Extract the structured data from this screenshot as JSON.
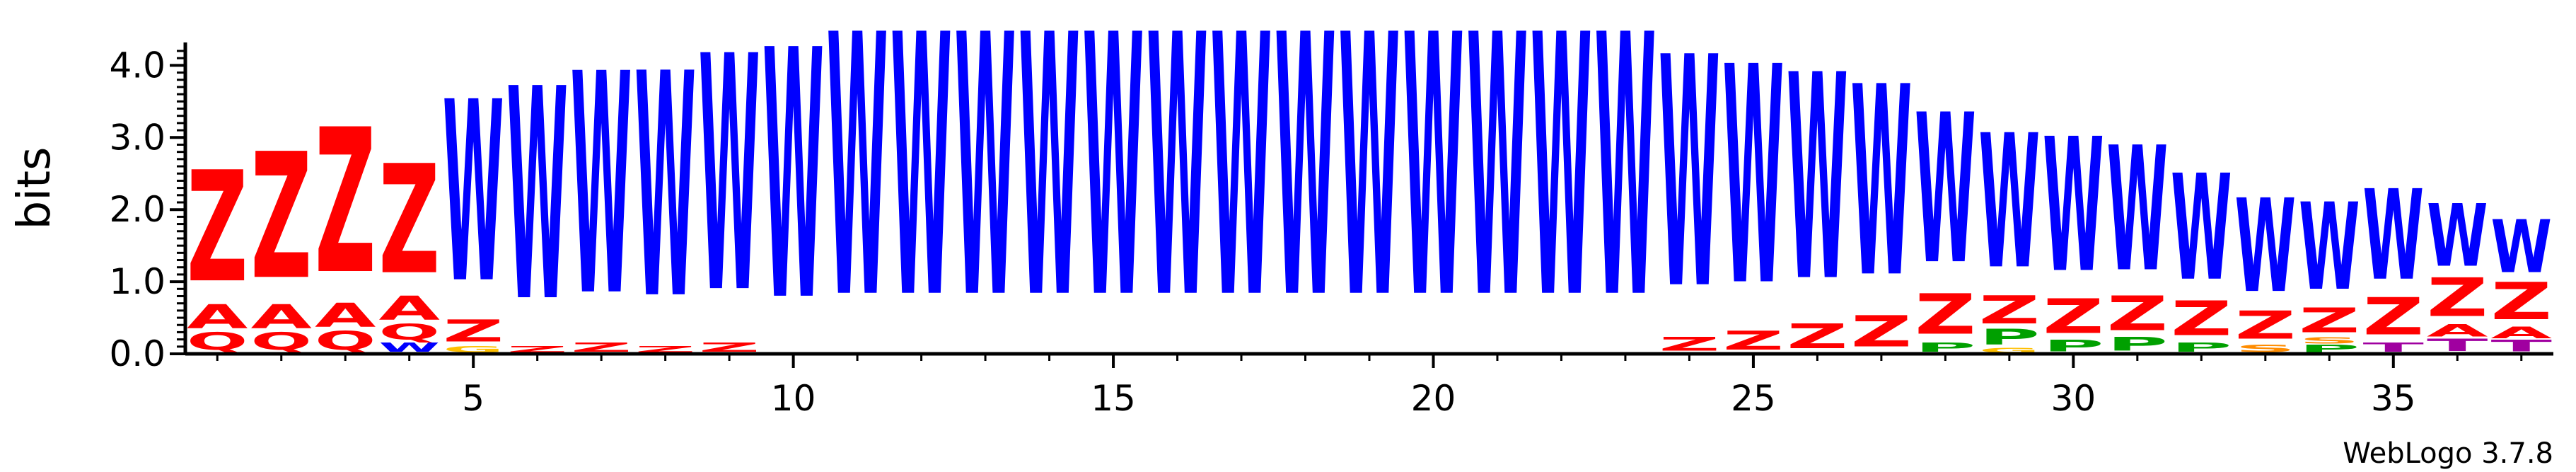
{
  "chart_data": {
    "type": "sequence-logo",
    "ylabel": "bits",
    "ylim": [
      0,
      4.2
    ],
    "y_ticks": [
      "0.0",
      "1.0",
      "2.0",
      "3.0",
      "4.0"
    ],
    "x_ticks": [
      "5",
      "10",
      "15",
      "20",
      "25",
      "30",
      "35"
    ],
    "colors": {
      "Z": "#ff0000",
      "A": "#ff0000",
      "Q": "#ff0000",
      "W": "#0000ff",
      "P": "#00a000",
      "T": "#a000a0",
      "S": "#ff8c00",
      "G": "#ffbf00"
    },
    "positions": [
      {
        "pos": 1,
        "stack": [
          {
            "l": "Q",
            "h": 0.28
          },
          {
            "l": "A",
            "h": 0.38
          },
          {
            "l": "Z",
            "h": 1.78
          }
        ]
      },
      {
        "pos": 2,
        "stack": [
          {
            "l": "Q",
            "h": 0.28
          },
          {
            "l": "A",
            "h": 0.38
          },
          {
            "l": "Z",
            "h": 2.02
          }
        ]
      },
      {
        "pos": 3,
        "stack": [
          {
            "l": "Q",
            "h": 0.3
          },
          {
            "l": "A",
            "h": 0.38
          },
          {
            "l": "Z",
            "h": 2.32
          }
        ]
      },
      {
        "pos": 4,
        "stack": [
          {
            "l": "W",
            "h": 0.15
          },
          {
            "l": "Q",
            "h": 0.25
          },
          {
            "l": "A",
            "h": 0.38
          },
          {
            "l": "Z",
            "h": 1.75
          }
        ]
      },
      {
        "pos": 5,
        "stack": [
          {
            "l": "G",
            "h": 0.1
          },
          {
            "l": "Z",
            "h": 0.35
          },
          {
            "l": "W",
            "h": 2.9
          }
        ]
      },
      {
        "pos": 6,
        "stack": [
          {
            "l": "Z",
            "h": 0.1
          },
          {
            "l": "W",
            "h": 3.4
          }
        ]
      },
      {
        "pos": 7,
        "stack": [
          {
            "l": "Z",
            "h": 0.15
          },
          {
            "l": "W",
            "h": 3.55
          }
        ]
      },
      {
        "pos": 8,
        "stack": [
          {
            "l": "Z",
            "h": 0.1
          },
          {
            "l": "W",
            "h": 3.6
          }
        ]
      },
      {
        "pos": 9,
        "stack": [
          {
            "l": "Z",
            "h": 0.15
          },
          {
            "l": "W",
            "h": 3.78
          }
        ]
      },
      {
        "pos": 10,
        "stack": [
          {
            "l": "W",
            "h": 4.0
          }
        ]
      },
      {
        "pos": 11,
        "stack": [
          {
            "l": "W",
            "h": 4.2
          }
        ]
      },
      {
        "pos": 12,
        "stack": [
          {
            "l": "W",
            "h": 4.2
          }
        ]
      },
      {
        "pos": 13,
        "stack": [
          {
            "l": "W",
            "h": 4.2
          }
        ]
      },
      {
        "pos": 14,
        "stack": [
          {
            "l": "W",
            "h": 4.2
          }
        ]
      },
      {
        "pos": 15,
        "stack": [
          {
            "l": "W",
            "h": 4.2
          }
        ]
      },
      {
        "pos": 16,
        "stack": [
          {
            "l": "W",
            "h": 4.2
          }
        ]
      },
      {
        "pos": 17,
        "stack": [
          {
            "l": "W",
            "h": 4.2
          }
        ]
      },
      {
        "pos": 18,
        "stack": [
          {
            "l": "W",
            "h": 4.2
          }
        ]
      },
      {
        "pos": 19,
        "stack": [
          {
            "l": "W",
            "h": 4.2
          }
        ]
      },
      {
        "pos": 20,
        "stack": [
          {
            "l": "W",
            "h": 4.2
          }
        ]
      },
      {
        "pos": 21,
        "stack": [
          {
            "l": "W",
            "h": 4.2
          }
        ]
      },
      {
        "pos": 22,
        "stack": [
          {
            "l": "W",
            "h": 4.2
          }
        ]
      },
      {
        "pos": 23,
        "stack": [
          {
            "l": "W",
            "h": 4.2
          }
        ]
      },
      {
        "pos": 24,
        "stack": [
          {
            "l": "Z",
            "h": 0.22
          },
          {
            "l": "W",
            "h": 3.7
          }
        ]
      },
      {
        "pos": 25,
        "stack": [
          {
            "l": "Z",
            "h": 0.3
          },
          {
            "l": "W",
            "h": 3.5
          }
        ]
      },
      {
        "pos": 26,
        "stack": [
          {
            "l": "Z",
            "h": 0.4
          },
          {
            "l": "W",
            "h": 3.3
          }
        ]
      },
      {
        "pos": 27,
        "stack": [
          {
            "l": "Z",
            "h": 0.5
          },
          {
            "l": "W",
            "h": 3.05
          }
        ]
      },
      {
        "pos": 28,
        "stack": [
          {
            "l": "P",
            "h": 0.15
          },
          {
            "l": "Z",
            "h": 0.65
          },
          {
            "l": "W",
            "h": 2.4
          }
        ]
      },
      {
        "pos": 29,
        "stack": [
          {
            "l": "G",
            "h": 0.08
          },
          {
            "l": "P",
            "h": 0.25
          },
          {
            "l": "Z",
            "h": 0.45
          },
          {
            "l": "W",
            "h": 2.15
          }
        ]
      },
      {
        "pos": 30,
        "stack": [
          {
            "l": "P",
            "h": 0.18
          },
          {
            "l": "Z",
            "h": 0.55
          },
          {
            "l": "W",
            "h": 2.15
          }
        ]
      },
      {
        "pos": 31,
        "stack": [
          {
            "l": "P",
            "h": 0.22
          },
          {
            "l": "Z",
            "h": 0.55
          },
          {
            "l": "W",
            "h": 2.0
          }
        ]
      },
      {
        "pos": 32,
        "stack": [
          {
            "l": "P",
            "h": 0.15
          },
          {
            "l": "Z",
            "h": 0.55
          },
          {
            "l": "W",
            "h": 1.7
          }
        ]
      },
      {
        "pos": 33,
        "stack": [
          {
            "l": "S",
            "h": 0.12
          },
          {
            "l": "Z",
            "h": 0.45
          },
          {
            "l": "W",
            "h": 1.5
          }
        ]
      },
      {
        "pos": 34,
        "stack": [
          {
            "l": "P",
            "h": 0.12
          },
          {
            "l": "S",
            "h": 0.1
          },
          {
            "l": "Z",
            "h": 0.4
          },
          {
            "l": "W",
            "h": 1.4
          }
        ]
      },
      {
        "pos": 35,
        "stack": [
          {
            "l": "T",
            "h": 0.15
          },
          {
            "l": "Z",
            "h": 0.6
          },
          {
            "l": "W",
            "h": 1.45
          }
        ]
      },
      {
        "pos": 36,
        "stack": [
          {
            "l": "T",
            "h": 0.2
          },
          {
            "l": "A",
            "h": 0.2
          },
          {
            "l": "Z",
            "h": 0.62
          },
          {
            "l": "W",
            "h": 1.0
          }
        ]
      },
      {
        "pos": 37,
        "stack": [
          {
            "l": "T",
            "h": 0.18
          },
          {
            "l": "A",
            "h": 0.18
          },
          {
            "l": "Z",
            "h": 0.6
          },
          {
            "l": "W",
            "h": 0.85
          }
        ]
      }
    ]
  },
  "footer": {
    "credit": "WebLogo 3.7.8"
  }
}
